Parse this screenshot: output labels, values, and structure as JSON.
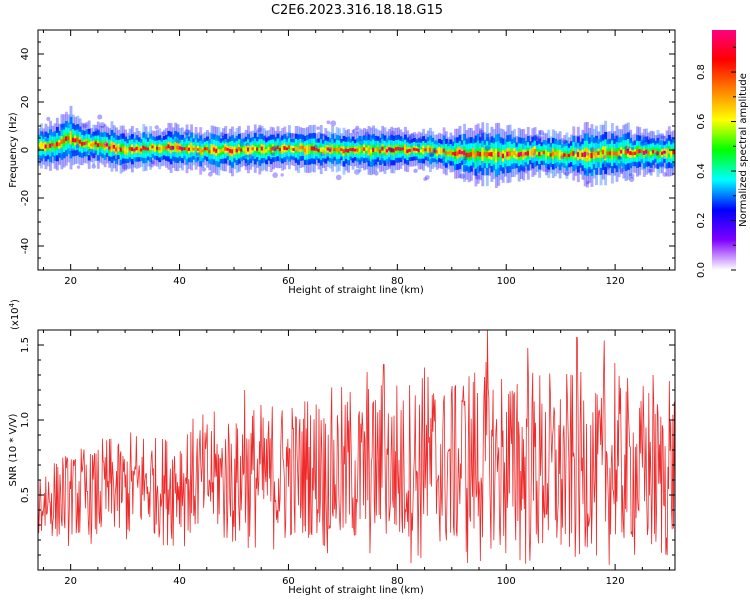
{
  "title": "C2E6.2023.316.18.18.G15",
  "colorbar": {
    "label": "Normalized spectral amplitude",
    "ticks": [
      "0.0",
      "0.2",
      "0.4",
      "0.6",
      "0.8"
    ],
    "tick_values": [
      0.0,
      0.2,
      0.4,
      0.6,
      0.8
    ],
    "range": [
      0,
      0.97
    ],
    "colors": [
      "#ffffff",
      "#7f00ff",
      "#0000ff",
      "#00ffff",
      "#00ff00",
      "#ffff00",
      "#ff8000",
      "#ff0000",
      "#ff0080"
    ]
  },
  "chart_data": [
    {
      "type": "heatmap",
      "xlabel": "Height of straight line (km)",
      "ylabel": "Frequency (Hz)",
      "xlim": [
        14,
        131
      ],
      "ylim": [
        -50,
        50
      ],
      "x_ticks": [
        20,
        40,
        60,
        80,
        100,
        120
      ],
      "y_ticks": [
        -40,
        -20,
        0,
        20,
        40
      ],
      "y_tick_labels": [
        "-40",
        "-20",
        "0",
        "20",
        "40"
      ],
      "ridge": {
        "x": [
          14,
          17,
          20,
          22,
          26,
          30,
          35,
          40,
          45,
          50,
          55,
          60,
          65,
          70,
          75,
          80,
          85,
          90,
          95,
          100,
          105,
          110,
          115,
          120,
          125,
          131
        ],
        "y": [
          1,
          2,
          5,
          3,
          2,
          0,
          1,
          1,
          0,
          0,
          0,
          1,
          0,
          0,
          0,
          0,
          0,
          -1,
          -2,
          -2,
          -1,
          -2,
          -2,
          -1,
          -1,
          -1
        ],
        "halfwidth": [
          3,
          3,
          4,
          3,
          3,
          3,
          3,
          3,
          3,
          3,
          3,
          3,
          3,
          3,
          3,
          3,
          3,
          3,
          4,
          4,
          3,
          3,
          4,
          4,
          3,
          3
        ]
      }
    },
    {
      "type": "line",
      "xlabel": "Height of straight line (km)",
      "ylabel": "SNR (10 * V/V)",
      "multiplier": "(x10",
      "multiplier_exp": "4",
      "multiplier_end": ")",
      "xlim": [
        14,
        131
      ],
      "ylim": [
        0,
        1.6
      ],
      "x_ticks": [
        20,
        40,
        60,
        80,
        100,
        120
      ],
      "y_ticks": [
        0.5,
        1.0,
        1.5
      ],
      "y_tick_labels": [
        "0.5",
        "1.0",
        "1.5"
      ],
      "series": [
        {
          "color": "#ee2a2a",
          "x_start": 14,
          "x_end": 131,
          "trend_x": [
            14,
            30,
            45,
            55,
            65,
            75,
            85,
            95,
            105,
            115,
            125,
            131
          ],
          "trend_mean": [
            0.45,
            0.55,
            0.6,
            0.63,
            0.65,
            0.67,
            0.68,
            0.7,
            0.68,
            0.67,
            0.66,
            0.64
          ],
          "trend_amp": [
            0.3,
            0.38,
            0.45,
            0.5,
            0.55,
            0.6,
            0.65,
            0.7,
            0.68,
            0.65,
            0.62,
            0.6
          ],
          "peaks": [
            {
              "x": 52,
              "y": 1.2
            },
            {
              "x": 57,
              "y": 1.09
            },
            {
              "x": 74.5,
              "y": 1.32
            },
            {
              "x": 77.5,
              "y": 1.37
            },
            {
              "x": 85,
              "y": 1.35
            },
            {
              "x": 96.5,
              "y": 1.6
            },
            {
              "x": 102,
              "y": 1.24
            },
            {
              "x": 104,
              "y": 1.48
            },
            {
              "x": 113,
              "y": 1.55
            },
            {
              "x": 118,
              "y": 1.53
            },
            {
              "x": 120,
              "y": 1.38
            },
            {
              "x": 127,
              "y": 1.3
            },
            {
              "x": 130,
              "y": 1.26
            },
            {
              "x": 66,
              "y": 1.0
            },
            {
              "x": 92,
              "y": 1.12
            }
          ]
        }
      ]
    }
  ]
}
